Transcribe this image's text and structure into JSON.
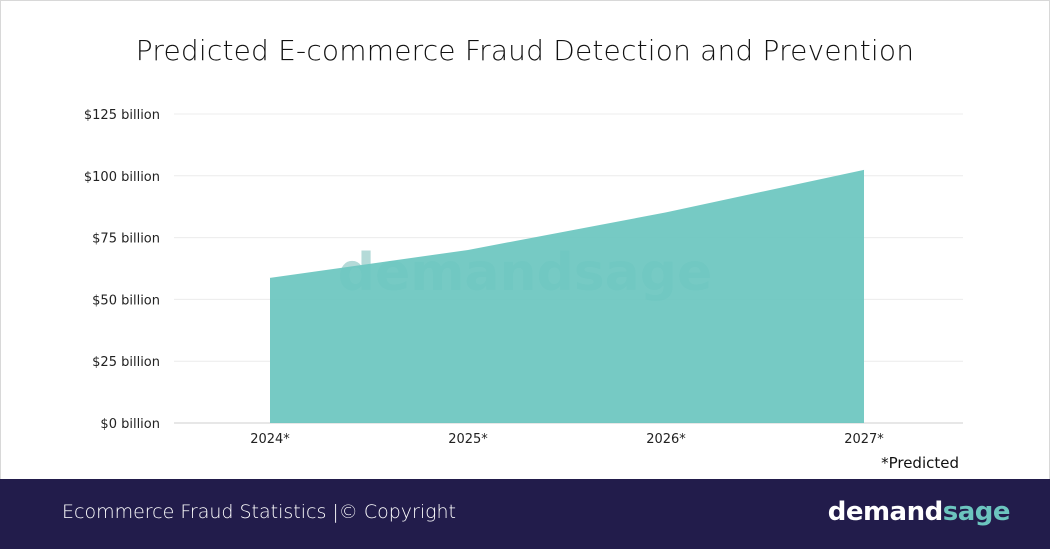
{
  "chart_data": {
    "type": "area",
    "title": "Predicted E-commerce Fraud Detection and Prevention",
    "categories": [
      "2024*",
      "2025*",
      "2026*",
      "2027*"
    ],
    "values": [
      58.7,
      70,
      85.2,
      102.4
    ],
    "unit": "billion USD",
    "yticks": [
      "$0 billion",
      "$25 billion",
      "$50 billion",
      "$75 billion",
      "$100 billion",
      "$125 billion"
    ],
    "ylim": [
      0,
      125
    ],
    "grid": true,
    "color": "#6cc6c0",
    "note": "*Predicted",
    "watermark": "demandsage"
  },
  "footer": {
    "text": "Ecommerce Fraud Statistics  |© Copyright",
    "logo_part1": "demand",
    "logo_part2": "sage"
  }
}
